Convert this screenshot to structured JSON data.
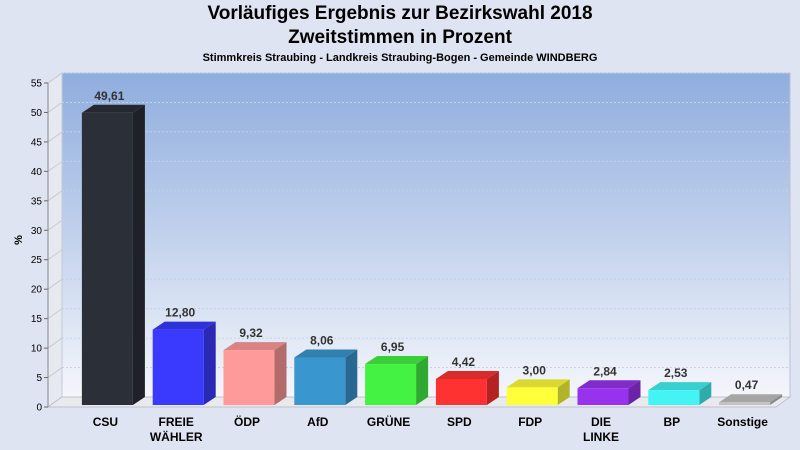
{
  "chart_data": {
    "type": "bar",
    "title": "Vorläufiges Ergebnis zur Bezirkswahl 2018",
    "title_line2": "Zweitstimmen in Prozent",
    "subtitle": "Stimmkreis Straubing - Landkreis Straubing-Bogen - Gemeinde WINDBERG",
    "ylabel": "%",
    "xlabel": "",
    "ylim": [
      0,
      55
    ],
    "yticks": [
      "0",
      "5",
      "10",
      "15",
      "20",
      "25",
      "30",
      "35",
      "40",
      "45",
      "50",
      "55"
    ],
    "grid": true,
    "categories": [
      [
        "CSU"
      ],
      [
        "FREIE",
        "WÄHLER"
      ],
      [
        "ÖDP"
      ],
      [
        "AfD"
      ],
      [
        "GRÜNE"
      ],
      [
        "SPD"
      ],
      [
        "FDP"
      ],
      [
        "DIE",
        "LINKE"
      ],
      [
        "BP"
      ],
      [
        "Sonstige"
      ]
    ],
    "values": [
      49.61,
      12.8,
      9.32,
      8.06,
      6.95,
      4.42,
      3.0,
      2.84,
      2.53,
      0.47
    ],
    "value_labels": [
      "49,61",
      "12,80",
      "9,32",
      "8,06",
      "6,95",
      "4,42",
      "3,00",
      "2,84",
      "2,53",
      "0,47"
    ],
    "colors": [
      "#2b2f38",
      "#3a3aff",
      "#ff9a9a",
      "#3a96cf",
      "#44f244",
      "#ff3232",
      "#ffff3a",
      "#9932ee",
      "#44f4f4",
      "#c2c2c2"
    ]
  }
}
